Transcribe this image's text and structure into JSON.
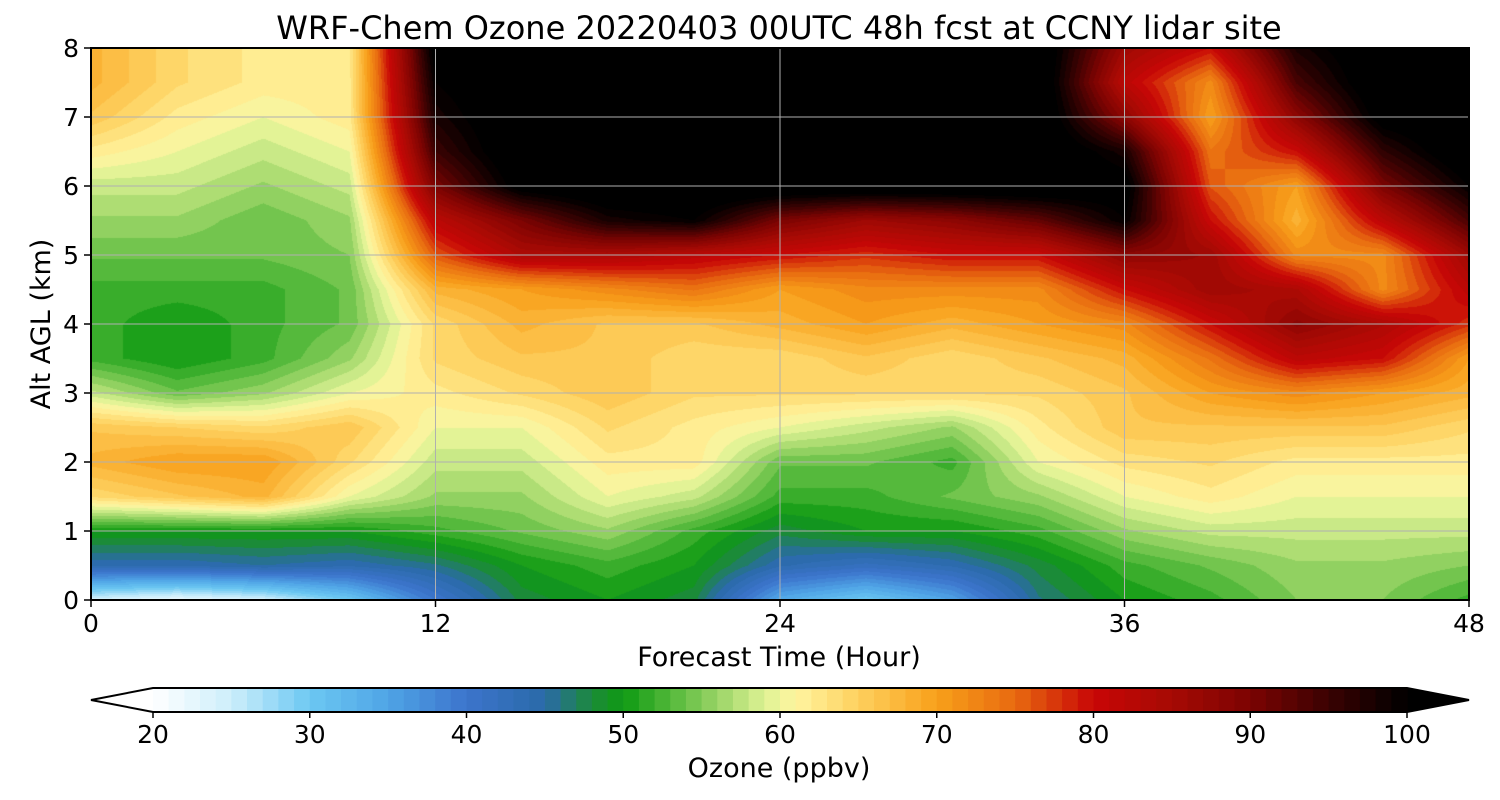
{
  "chart_data": {
    "type": "heatmap",
    "title": "WRF-Chem Ozone  20220403 00UTC 48h fcst at CCNY lidar site",
    "xlabel": "Forecast Time (Hour)",
    "ylabel": "Alt AGL (km)",
    "xlim": [
      0,
      48
    ],
    "ylim": [
      0,
      8
    ],
    "xticks": [
      0,
      12,
      24,
      36,
      48
    ],
    "xtick_labels": [
      "0",
      "12",
      "24",
      "36",
      "48"
    ],
    "yticks": [
      0,
      1,
      2,
      3,
      4,
      5,
      6,
      7,
      8
    ],
    "ytick_labels": [
      "0",
      "1",
      "2",
      "3",
      "4",
      "5",
      "6",
      "7",
      "8"
    ],
    "grid": true,
    "x": [
      0,
      3,
      6,
      9,
      12,
      15,
      18,
      21,
      24,
      27,
      30,
      33,
      36,
      39,
      42,
      45,
      48
    ],
    "y": [
      0,
      0.5,
      1,
      1.5,
      2,
      2.5,
      3,
      3.5,
      4,
      4.5,
      5,
      5.5,
      6,
      6.5,
      7,
      7.5,
      8
    ],
    "z": [
      [
        24,
        22,
        24,
        30,
        40,
        48,
        50,
        48,
        34,
        30,
        35,
        46,
        50,
        52,
        55,
        55,
        52
      ],
      [
        44,
        44,
        45,
        44,
        46,
        50,
        52,
        50,
        44,
        42,
        44,
        48,
        52,
        54,
        56,
        56,
        55
      ],
      [
        50,
        50,
        50,
        50,
        52,
        54,
        56,
        52,
        48,
        50,
        50,
        52,
        56,
        58,
        58,
        58,
        58
      ],
      [
        64,
        66,
        68,
        60,
        56,
        56,
        60,
        58,
        52,
        52,
        54,
        56,
        60,
        62,
        60,
        60,
        60
      ],
      [
        68,
        70,
        70,
        64,
        58,
        58,
        62,
        62,
        54,
        54,
        52,
        60,
        63,
        64,
        62,
        62,
        62
      ],
      [
        66,
        65,
        64,
        66,
        60,
        60,
        64,
        62,
        60,
        58,
        56,
        62,
        66,
        66,
        66,
        66,
        64
      ],
      [
        58,
        54,
        56,
        60,
        62,
        64,
        66,
        64,
        64,
        64,
        64,
        64,
        66,
        70,
        72,
        70,
        68
      ],
      [
        52,
        50,
        52,
        56,
        64,
        66,
        66,
        64,
        64,
        66,
        64,
        66,
        68,
        74,
        82,
        80,
        70
      ],
      [
        52,
        50,
        52,
        54,
        64,
        68,
        66,
        66,
        68,
        70,
        68,
        70,
        72,
        80,
        88,
        84,
        78
      ],
      [
        52,
        52,
        52,
        54,
        68,
        70,
        72,
        74,
        70,
        72,
        72,
        72,
        80,
        86,
        84,
        72,
        82
      ],
      [
        54,
        54,
        54,
        55,
        76,
        84,
        84,
        82,
        80,
        78,
        80,
        80,
        88,
        86,
        72,
        72,
        86
      ],
      [
        56,
        56,
        54,
        56,
        82,
        90,
        98,
        100,
        90,
        86,
        88,
        92,
        100,
        80,
        68,
        82,
        94
      ],
      [
        58,
        58,
        56,
        58,
        90,
        102,
        104,
        104,
        104,
        104,
        104,
        104,
        102,
        76,
        70,
        90,
        100
      ],
      [
        62,
        60,
        58,
        60,
        95,
        104,
        104,
        104,
        104,
        104,
        104,
        104,
        98,
        74,
        80,
        96,
        104
      ],
      [
        66,
        62,
        60,
        62,
        98,
        104,
        104,
        104,
        104,
        104,
        104,
        104,
        88,
        70,
        88,
        102,
        104
      ],
      [
        68,
        64,
        62,
        62,
        100,
        104,
        104,
        104,
        104,
        104,
        104,
        104,
        82,
        72,
        94,
        104,
        104
      ],
      [
        68,
        64,
        62,
        62,
        102,
        104,
        104,
        104,
        104,
        104,
        104,
        104,
        86,
        80,
        98,
        104,
        104
      ]
    ],
    "colorbar": {
      "label": "Ozone  (ppbv)",
      "min": 20,
      "max": 100,
      "extend": "both",
      "ticks": [
        20,
        30,
        40,
        50,
        60,
        70,
        80,
        90,
        100
      ],
      "tick_labels": [
        "20",
        "30",
        "40",
        "50",
        "60",
        "70",
        "80",
        "90",
        "100"
      ],
      "color_stops": [
        {
          "value": 20,
          "color": "#ffffff"
        },
        {
          "value": 25,
          "color": "#cdeefb"
        },
        {
          "value": 30,
          "color": "#6cc8f2"
        },
        {
          "value": 35,
          "color": "#4fa4e6"
        },
        {
          "value": 40,
          "color": "#3c74cc"
        },
        {
          "value": 45,
          "color": "#2a6aa8"
        },
        {
          "value": 48,
          "color": "#1c8a3a"
        },
        {
          "value": 50,
          "color": "#0e9a12"
        },
        {
          "value": 53,
          "color": "#52b83a"
        },
        {
          "value": 56,
          "color": "#9ad466"
        },
        {
          "value": 59,
          "color": "#ddf294"
        },
        {
          "value": 61,
          "color": "#fff5a0"
        },
        {
          "value": 65,
          "color": "#fed05e"
        },
        {
          "value": 70,
          "color": "#f8a01a"
        },
        {
          "value": 75,
          "color": "#e86a10"
        },
        {
          "value": 80,
          "color": "#c80606"
        },
        {
          "value": 85,
          "color": "#a60a04"
        },
        {
          "value": 90,
          "color": "#7c0302"
        },
        {
          "value": 95,
          "color": "#3a0202"
        },
        {
          "value": 100,
          "color": "#000000"
        }
      ]
    }
  }
}
